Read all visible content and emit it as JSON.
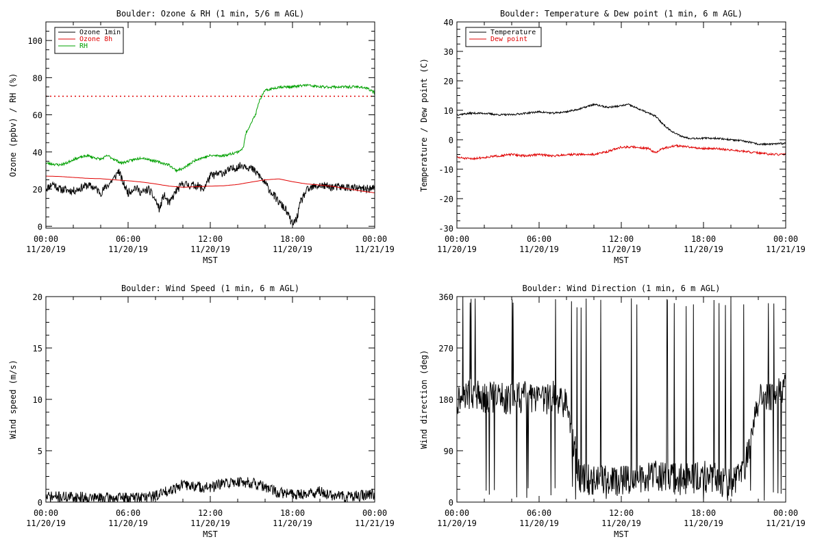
{
  "chart_data": [
    {
      "type": "line",
      "title": "Boulder: Ozone & RH (1 min, 5/6 m AGL)",
      "xlabel": "MST",
      "ylabel": "Ozone (ppbv) / RH (%)",
      "ylim": [
        -1,
        110
      ],
      "yticks": [
        0,
        20,
        40,
        60,
        80,
        100
      ],
      "xticks": [
        {
          "time": "00:00",
          "date": "11/20/19"
        },
        {
          "time": "06:00",
          "date": "11/20/19"
        },
        {
          "time": "12:00",
          "date": "11/20/19"
        },
        {
          "time": "18:00",
          "date": "11/20/19"
        },
        {
          "time": "00:00",
          "date": "11/21/19"
        }
      ],
      "legend_position": "top-left",
      "reference_line": {
        "value": 70,
        "color": "#e00000",
        "style": "dotted"
      },
      "series": [
        {
          "name": "Ozone 1min",
          "color": "#000000",
          "noise": 2.2,
          "seed": 11,
          "points": [
            [
              0,
              20
            ],
            [
              0.5,
              23
            ],
            [
              1,
              20
            ],
            [
              2,
              19
            ],
            [
              3,
              22
            ],
            [
              3.5,
              21
            ],
            [
              4,
              18
            ],
            [
              4.5,
              22
            ],
            [
              5,
              26
            ],
            [
              5.3,
              30
            ],
            [
              5.6,
              24
            ],
            [
              6,
              18
            ],
            [
              6.5,
              21
            ],
            [
              7,
              18
            ],
            [
              7.5,
              20
            ],
            [
              8,
              14
            ],
            [
              8.3,
              9
            ],
            [
              8.6,
              17
            ],
            [
              9,
              12
            ],
            [
              9.5,
              19
            ],
            [
              10,
              23
            ],
            [
              10.5,
              22
            ],
            [
              11,
              22
            ],
            [
              11.5,
              20
            ],
            [
              12,
              27
            ],
            [
              13,
              29
            ],
            [
              14,
              32
            ],
            [
              14.5,
              33
            ],
            [
              15,
              31
            ],
            [
              15.5,
              28
            ],
            [
              16,
              23
            ],
            [
              16.5,
              18
            ],
            [
              17,
              13
            ],
            [
              17.5,
              9
            ],
            [
              18,
              1
            ],
            [
              18.3,
              4
            ],
            [
              18.6,
              13
            ],
            [
              19,
              19
            ],
            [
              19.5,
              21
            ],
            [
              20,
              22
            ],
            [
              21,
              21
            ],
            [
              22,
              21
            ],
            [
              23,
              20
            ],
            [
              24,
              20.5
            ]
          ]
        },
        {
          "name": "Ozone 8h",
          "color": "#e00000",
          "noise": 0,
          "seed": 0,
          "points": [
            [
              0,
              27
            ],
            [
              1,
              26.8
            ],
            [
              2,
              26.3
            ],
            [
              3,
              25.8
            ],
            [
              4,
              25.6
            ],
            [
              5,
              25
            ],
            [
              6,
              24.5
            ],
            [
              7,
              23.8
            ],
            [
              8,
              22.8
            ],
            [
              9,
              21.6
            ],
            [
              10,
              21
            ],
            [
              11,
              21.3
            ],
            [
              12,
              21.6
            ],
            [
              13,
              21.8
            ],
            [
              14,
              22.5
            ],
            [
              15,
              23.8
            ],
            [
              16,
              25
            ],
            [
              17,
              25.5
            ],
            [
              18,
              24
            ],
            [
              19,
              22.8
            ],
            [
              20,
              22.2
            ],
            [
              21,
              21.4
            ],
            [
              22,
              20.2
            ],
            [
              23,
              19
            ],
            [
              24,
              18
            ]
          ]
        },
        {
          "name": "RH",
          "color": "#00a000",
          "noise": 0.7,
          "seed": 23,
          "points": [
            [
              0,
              34
            ],
            [
              1,
              33
            ],
            [
              1.5,
              34
            ],
            [
              2,
              36
            ],
            [
              3,
              38
            ],
            [
              4,
              36
            ],
            [
              4.5,
              38
            ],
            [
              5,
              36
            ],
            [
              5.5,
              34
            ],
            [
              6,
              35
            ],
            [
              7,
              37
            ],
            [
              8,
              35
            ],
            [
              9,
              33
            ],
            [
              9.5,
              30
            ],
            [
              10,
              31
            ],
            [
              11,
              36
            ],
            [
              12,
              38
            ],
            [
              13,
              38
            ],
            [
              13.5,
              39
            ],
            [
              14,
              40
            ],
            [
              14.4,
              42
            ],
            [
              14.6,
              50
            ],
            [
              15,
              56
            ],
            [
              15.3,
              60
            ],
            [
              15.6,
              68
            ],
            [
              16,
              73
            ],
            [
              16.5,
              74
            ],
            [
              17,
              75
            ],
            [
              18,
              75
            ],
            [
              19,
              76
            ],
            [
              20,
              75
            ],
            [
              21,
              75
            ],
            [
              22,
              75
            ],
            [
              23,
              75
            ],
            [
              23.5,
              74
            ],
            [
              24,
              72
            ]
          ]
        }
      ]
    },
    {
      "type": "line",
      "title": "Boulder: Temperature & Dew point (1 min, 6 m AGL)",
      "xlabel": "MST",
      "ylabel": "Temperature / Dew point (C)",
      "ylim": [
        -30,
        40
      ],
      "yticks": [
        -30,
        -20,
        -10,
        0,
        10,
        20,
        30,
        40
      ],
      "xticks": [
        {
          "time": "00:00",
          "date": "11/20/19"
        },
        {
          "time": "06:00",
          "date": "11/20/19"
        },
        {
          "time": "12:00",
          "date": "11/20/19"
        },
        {
          "time": "18:00",
          "date": "11/20/19"
        },
        {
          "time": "00:00",
          "date": "11/21/19"
        }
      ],
      "legend_position": "top-left",
      "series": [
        {
          "name": "Temperature",
          "color": "#000000",
          "noise": 0.3,
          "seed": 37,
          "points": [
            [
              0,
              8.5
            ],
            [
              1,
              9
            ],
            [
              2,
              9
            ],
            [
              3,
              8.5
            ],
            [
              4,
              8.5
            ],
            [
              5,
              9
            ],
            [
              6,
              9.5
            ],
            [
              7,
              9
            ],
            [
              8,
              9.5
            ],
            [
              9,
              10.5
            ],
            [
              10,
              12
            ],
            [
              11,
              11
            ],
            [
              12,
              11.5
            ],
            [
              12.5,
              12
            ],
            [
              13,
              11
            ],
            [
              14,
              9
            ],
            [
              14.5,
              8
            ],
            [
              15,
              5.5
            ],
            [
              15.5,
              3.5
            ],
            [
              16,
              2
            ],
            [
              16.5,
              1
            ],
            [
              17,
              0.5
            ],
            [
              18,
              0.5
            ],
            [
              19,
              0.5
            ],
            [
              20,
              0
            ],
            [
              21,
              -0.5
            ],
            [
              22,
              -1.5
            ],
            [
              23,
              -1.5
            ],
            [
              24,
              -1.2
            ]
          ]
        },
        {
          "name": "Dew point",
          "color": "#e00000",
          "noise": 0.35,
          "seed": 51,
          "points": [
            [
              0,
              -6
            ],
            [
              1,
              -6.5
            ],
            [
              2,
              -6
            ],
            [
              3,
              -5.5
            ],
            [
              4,
              -5
            ],
            [
              5,
              -5.5
            ],
            [
              6,
              -5
            ],
            [
              7,
              -5.5
            ],
            [
              8,
              -5
            ],
            [
              9,
              -5
            ],
            [
              10,
              -5
            ],
            [
              11,
              -4
            ],
            [
              12,
              -2.5
            ],
            [
              13,
              -2.5
            ],
            [
              14,
              -3
            ],
            [
              14.5,
              -4.5
            ],
            [
              15,
              -3
            ],
            [
              16,
              -2
            ],
            [
              17,
              -2.5
            ],
            [
              18,
              -3
            ],
            [
              19,
              -3
            ],
            [
              20,
              -3.5
            ],
            [
              21,
              -4
            ],
            [
              22,
              -4.5
            ],
            [
              23,
              -5
            ],
            [
              24,
              -5
            ]
          ]
        }
      ]
    },
    {
      "type": "line",
      "title": "Boulder: Wind Speed (1 min, 6 m AGL)",
      "xlabel": "MST",
      "ylabel": "Wind speed (m/s)",
      "ylim": [
        0,
        20
      ],
      "yticks": [
        0,
        5,
        10,
        15,
        20
      ],
      "xticks": [
        {
          "time": "00:00",
          "date": "11/20/19"
        },
        {
          "time": "06:00",
          "date": "11/20/19"
        },
        {
          "time": "12:00",
          "date": "11/20/19"
        },
        {
          "time": "18:00",
          "date": "11/20/19"
        },
        {
          "time": "00:00",
          "date": "11/21/19"
        }
      ],
      "series": [
        {
          "name": "",
          "color": "#000000",
          "noise": 0.55,
          "seed": 71,
          "floor": 0,
          "points": [
            [
              0,
              0.5
            ],
            [
              2,
              0.5
            ],
            [
              4,
              0.4
            ],
            [
              6,
              0.4
            ],
            [
              8,
              0.6
            ],
            [
              9,
              1.2
            ],
            [
              10,
              1.7
            ],
            [
              11,
              1.5
            ],
            [
              12,
              1.4
            ],
            [
              13,
              1.8
            ],
            [
              14,
              2.0
            ],
            [
              15,
              1.9
            ],
            [
              16,
              1.4
            ],
            [
              17,
              0.9
            ],
            [
              18,
              0.8
            ],
            [
              19,
              0.8
            ],
            [
              20,
              1.0
            ],
            [
              21,
              0.6
            ],
            [
              22,
              0.5
            ],
            [
              23,
              0.6
            ],
            [
              24,
              0.8
            ]
          ]
        }
      ]
    },
    {
      "type": "line",
      "title": "Boulder: Wind Direction (1 min, 6 m AGL)",
      "xlabel": "MST",
      "ylabel": "Wind direction (deg)",
      "ylim": [
        0,
        360
      ],
      "yticks": [
        0,
        90,
        180,
        270,
        360
      ],
      "xticks": [
        {
          "time": "00:00",
          "date": "11/20/19"
        },
        {
          "time": "06:00",
          "date": "11/20/19"
        },
        {
          "time": "12:00",
          "date": "11/20/19"
        },
        {
          "time": "18:00",
          "date": "11/20/19"
        },
        {
          "time": "00:00",
          "date": "11/21/19"
        }
      ],
      "series": [
        {
          "name": "",
          "color": "#000000",
          "noise": 28,
          "seed": 97,
          "floor": 0,
          "ceil": 360,
          "spikes": 0.06,
          "points": [
            [
              0,
              180
            ],
            [
              1,
              190
            ],
            [
              2,
              180
            ],
            [
              3,
              185
            ],
            [
              4,
              180
            ],
            [
              5,
              185
            ],
            [
              6,
              175
            ],
            [
              7,
              185
            ],
            [
              8,
              170
            ],
            [
              9,
              40
            ],
            [
              10,
              40
            ],
            [
              11,
              40
            ],
            [
              12,
              35
            ],
            [
              13,
              40
            ],
            [
              14,
              45
            ],
            [
              15,
              45
            ],
            [
              16,
              40
            ],
            [
              17,
              40
            ],
            [
              18,
              45
            ],
            [
              19,
              40
            ],
            [
              20,
              30
            ],
            [
              21,
              60
            ],
            [
              22,
              180
            ],
            [
              23,
              185
            ],
            [
              24,
              200
            ]
          ]
        }
      ]
    }
  ]
}
